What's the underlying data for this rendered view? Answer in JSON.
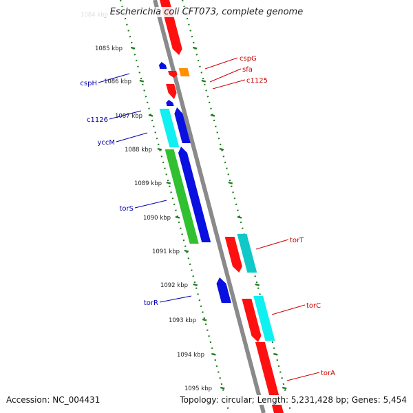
{
  "title": "Escherichia coli CFT073, complete genome",
  "footer": {
    "accession": "Accession: NC_004431",
    "summary": "Topology: circular; Length: 5,231,428 bp; Genes: 5,454"
  },
  "colors": {
    "backbone": "#8a8a8a",
    "ticks": "#1e7a1e",
    "forward_label": "#cc0000",
    "reverse_label": "#0000aa",
    "red": "#ff1010",
    "blue": "#0a10e0",
    "cyan": "#10f0f0",
    "teal": "#10c8c8",
    "green": "#30c030",
    "orange": "#ff9000"
  },
  "kbp_ticks": [
    "1084 kbp",
    "1085 kbp",
    "1086 kbp",
    "1087 kbp",
    "1088 kbp",
    "1089 kbp",
    "1090 kbp",
    "1091 kbp",
    "1092 kbp",
    "1093 kbp",
    "1094 kbp",
    "1095 kbp"
  ],
  "gene_labels": {
    "forward": [
      "cspG",
      "sfa",
      "c1125",
      "torT",
      "torC",
      "torA"
    ],
    "reverse": [
      "cspH",
      "c1126",
      "yccM",
      "torS",
      "torR"
    ]
  }
}
